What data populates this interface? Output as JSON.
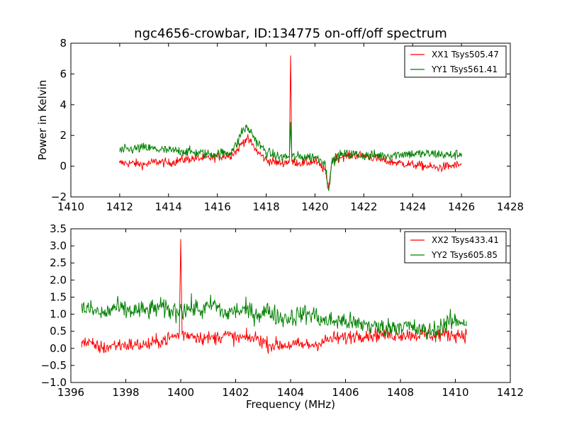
{
  "figure": {
    "title": "ngc4656-crowbar, ID:134775 on-off/off spectrum"
  },
  "chart_data": [
    {
      "type": "line",
      "title": "ngc4656-crowbar, ID:134775 on-off/off spectrum",
      "xlabel": "",
      "ylabel": "Power in Kelvin",
      "xlim": [
        1410,
        1428
      ],
      "ylim": [
        -2,
        8
      ],
      "xticks": [
        "1410",
        "1412",
        "1414",
        "1416",
        "1418",
        "1420",
        "1422",
        "1424",
        "1426",
        "1428"
      ],
      "yticks": [
        "−2",
        "0",
        "2",
        "4",
        "6",
        "8"
      ],
      "legend_position": "top-right",
      "series": [
        {
          "name": "XX1 Tsys505.47",
          "color": "#ff0000",
          "x": [
            1412.0,
            1412.5,
            1413.0,
            1413.5,
            1414.0,
            1414.5,
            1415.0,
            1415.5,
            1416.0,
            1416.5,
            1416.8,
            1417.0,
            1417.2,
            1417.4,
            1417.6,
            1418.0,
            1418.5,
            1418.95,
            1419.0,
            1419.05,
            1419.5,
            1420.0,
            1420.4,
            1420.55,
            1420.7,
            1421.0,
            1421.5,
            1422.0,
            1422.5,
            1423.0,
            1423.5,
            1424.0,
            1424.5,
            1425.0,
            1425.5,
            1426.0
          ],
          "y": [
            0.2,
            0.2,
            0.1,
            0.3,
            0.2,
            0.4,
            0.5,
            0.5,
            0.6,
            0.7,
            1.0,
            1.5,
            1.8,
            1.5,
            1.0,
            0.4,
            0.2,
            0.3,
            7.2,
            0.3,
            0.2,
            0.3,
            -0.2,
            -1.4,
            0.4,
            0.6,
            0.7,
            0.7,
            0.5,
            0.3,
            0.2,
            0.1,
            0.0,
            -0.1,
            0.0,
            0.1
          ]
        },
        {
          "name": "YY1 Tsys561.41",
          "color": "#008000",
          "x": [
            1412.0,
            1412.5,
            1413.0,
            1413.5,
            1414.0,
            1414.5,
            1415.0,
            1415.5,
            1416.0,
            1416.5,
            1416.8,
            1417.0,
            1417.2,
            1417.4,
            1417.6,
            1418.0,
            1418.5,
            1418.95,
            1419.0,
            1419.05,
            1419.5,
            1420.0,
            1420.4,
            1420.55,
            1420.7,
            1421.0,
            1421.5,
            1422.0,
            1422.5,
            1423.0,
            1423.5,
            1424.0,
            1424.5,
            1425.0,
            1425.5,
            1426.0
          ],
          "y": [
            1.0,
            1.1,
            1.2,
            1.1,
            1.0,
            1.0,
            0.9,
            0.8,
            0.8,
            0.9,
            1.4,
            2.3,
            2.5,
            2.2,
            1.6,
            0.9,
            0.6,
            0.6,
            2.8,
            0.6,
            0.6,
            0.6,
            0.3,
            -1.5,
            0.3,
            0.7,
            0.8,
            0.7,
            0.7,
            0.7,
            0.8,
            0.8,
            0.8,
            0.8,
            0.7,
            0.8
          ]
        }
      ]
    },
    {
      "type": "line",
      "title": "",
      "xlabel": "Frequency (MHz)",
      "ylabel": "",
      "xlim": [
        1396,
        1412
      ],
      "ylim": [
        -1.0,
        3.5
      ],
      "xticks": [
        "1396",
        "1398",
        "1400",
        "1402",
        "1404",
        "1406",
        "1408",
        "1410",
        "1412"
      ],
      "yticks": [
        "−1.0",
        "−0.5",
        "0.0",
        "0.5",
        "1.0",
        "1.5",
        "2.0",
        "2.5",
        "3.0",
        "3.5"
      ],
      "legend_position": "top-right",
      "series": [
        {
          "name": "XX2 Tsys433.41",
          "color": "#ff0000",
          "x": [
            1396.4,
            1396.8,
            1397.2,
            1397.6,
            1398.0,
            1398.4,
            1398.8,
            1399.2,
            1399.6,
            1399.95,
            1400.0,
            1400.05,
            1400.4,
            1400.8,
            1401.2,
            1401.6,
            1402.0,
            1402.4,
            1402.8,
            1403.2,
            1403.6,
            1404.0,
            1404.4,
            1404.8,
            1405.2,
            1405.6,
            1406.0,
            1406.4,
            1406.8,
            1407.2,
            1407.6,
            1408.0,
            1408.4,
            1408.8,
            1409.2,
            1409.6,
            1410.0,
            1410.4
          ],
          "y": [
            0.2,
            0.1,
            0.0,
            0.1,
            0.1,
            0.1,
            0.1,
            0.2,
            0.3,
            0.4,
            3.2,
            0.4,
            0.4,
            0.3,
            0.3,
            0.4,
            0.3,
            0.3,
            0.3,
            0.1,
            0.1,
            0.1,
            0.1,
            0.1,
            0.2,
            0.3,
            0.3,
            0.4,
            0.4,
            0.4,
            0.4,
            0.4,
            0.4,
            0.4,
            0.4,
            0.4,
            0.4,
            0.4
          ]
        },
        {
          "name": "YY2 Tsys605.85",
          "color": "#008000",
          "x": [
            1396.4,
            1396.8,
            1397.2,
            1397.6,
            1398.0,
            1398.4,
            1398.8,
            1399.2,
            1399.6,
            1399.95,
            1400.0,
            1400.05,
            1400.4,
            1400.8,
            1401.2,
            1401.6,
            1402.0,
            1402.4,
            1402.8,
            1403.2,
            1403.6,
            1404.0,
            1404.4,
            1404.8,
            1405.2,
            1405.6,
            1406.0,
            1406.4,
            1406.8,
            1407.2,
            1407.6,
            1408.0,
            1408.4,
            1408.8,
            1409.2,
            1409.6,
            1410.0,
            1410.4
          ],
          "y": [
            1.2,
            1.1,
            1.0,
            1.2,
            1.1,
            1.1,
            1.1,
            1.2,
            1.1,
            1.1,
            1.3,
            1.1,
            1.2,
            1.1,
            1.3,
            1.0,
            1.1,
            1.1,
            1.0,
            1.1,
            0.9,
            0.9,
            1.0,
            1.0,
            0.8,
            0.8,
            0.8,
            0.7,
            0.7,
            0.6,
            0.6,
            0.7,
            0.6,
            0.5,
            0.5,
            0.7,
            0.8,
            0.8
          ]
        }
      ]
    }
  ]
}
